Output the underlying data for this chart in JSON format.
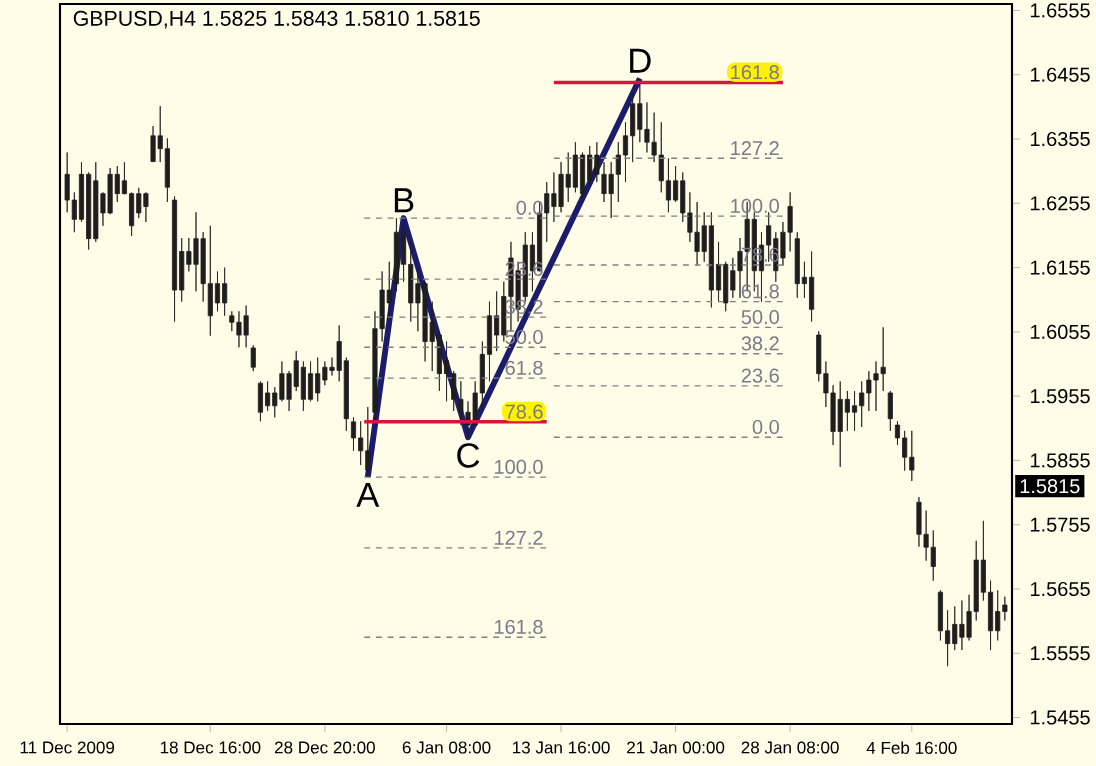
{
  "chart_data": {
    "type": "candlestick",
    "title": "GBPUSD,H4  1.5825 1.5843 1.5810 1.5815",
    "color": "#1e1e1e",
    "categories": [
      "11 Dec 2009",
      null,
      null,
      null,
      null,
      null,
      null,
      null,
      null,
      null,
      null,
      null,
      null,
      null,
      null,
      null,
      null,
      null,
      null,
      null,
      "18 Dec 16:00",
      null,
      null,
      null,
      null,
      null,
      null,
      null,
      null,
      null,
      null,
      null,
      null,
      null,
      null,
      null,
      "28 Dec 20:00",
      null,
      null,
      null,
      null,
      null,
      null,
      null,
      null,
      null,
      null,
      null,
      null,
      null,
      null,
      null,
      null,
      "6 Jan 08:00",
      null,
      null,
      null,
      null,
      null,
      null,
      null,
      null,
      null,
      null,
      null,
      null,
      null,
      null,
      null,
      "13 Jan 16:00",
      null,
      null,
      null,
      null,
      null,
      null,
      null,
      null,
      null,
      null,
      null,
      null,
      null,
      null,
      null,
      "21 Jan 00:00",
      null,
      null,
      null,
      null,
      null,
      null,
      null,
      null,
      null,
      null,
      null,
      null,
      null,
      null,
      null,
      "28 Jan 08:00",
      null,
      null,
      null,
      null,
      null,
      null,
      null,
      null,
      null,
      null,
      null,
      null,
      null,
      null,
      null,
      null,
      "4 Feb 16:00",
      null,
      null,
      null,
      null,
      null,
      null,
      null,
      null,
      null,
      null,
      null,
      null,
      null
    ],
    "ohlc": [
      [
        1.63,
        1.6334,
        1.6241,
        1.626
      ],
      [
        1.626,
        1.6272,
        1.621,
        1.623
      ],
      [
        1.623,
        1.6319,
        1.6226,
        1.63
      ],
      [
        1.63,
        1.6303,
        1.6183,
        1.62
      ],
      [
        1.62,
        1.6319,
        1.6195,
        1.629
      ],
      [
        1.627,
        1.6272,
        1.622,
        1.624
      ],
      [
        1.624,
        1.631,
        1.6238,
        1.63
      ],
      [
        1.63,
        1.6313,
        1.6257,
        1.627
      ],
      [
        1.627,
        1.6319,
        1.6269,
        1.629
      ],
      [
        1.627,
        1.6272,
        1.6204,
        1.622
      ],
      [
        1.624,
        1.6279,
        1.6232,
        1.627
      ],
      [
        1.627,
        1.6272,
        1.6226,
        1.625
      ],
      [
        1.632,
        1.6375,
        1.6319,
        1.636
      ],
      [
        1.636,
        1.6406,
        1.6319,
        1.634
      ],
      [
        1.634,
        1.6356,
        1.6257,
        1.628
      ],
      [
        1.626,
        1.6266,
        1.6071,
        1.612
      ],
      [
        1.612,
        1.6201,
        1.6102,
        1.618
      ],
      [
        1.618,
        1.6201,
        1.6149,
        1.616
      ],
      [
        1.616,
        1.6241,
        1.6118,
        1.62
      ],
      [
        1.62,
        1.621,
        1.6102,
        1.613
      ],
      [
        1.613,
        1.622,
        1.6049,
        1.608
      ],
      [
        1.61,
        1.6149,
        1.6087,
        1.613
      ],
      [
        1.613,
        1.6155,
        1.608,
        1.61
      ],
      [
        1.608,
        1.6087,
        1.6056,
        1.607
      ],
      [
        1.607,
        1.6087,
        1.6031,
        1.605
      ],
      [
        1.605,
        1.6096,
        1.6031,
        1.608
      ],
      [
        1.603,
        1.6034,
        1.5994,
        1.6
      ],
      [
        1.5975,
        1.5978,
        1.5916,
        1.593
      ],
      [
        1.594,
        1.5978,
        1.5932,
        1.596
      ],
      [
        1.596,
        1.5969,
        1.5922,
        1.594
      ],
      [
        1.595,
        1.6009,
        1.5947,
        1.599
      ],
      [
        1.599,
        1.5994,
        1.5932,
        1.595
      ],
      [
        1.597,
        1.6025,
        1.5963,
        1.601
      ],
      [
        1.6,
        1.6009,
        1.5932,
        1.595
      ],
      [
        1.595,
        1.6009,
        1.5947,
        1.599
      ],
      [
        1.599,
        1.6015,
        1.5947,
        1.596
      ],
      [
        1.598,
        1.6009,
        1.5972,
        1.6
      ],
      [
        1.6,
        1.6015,
        1.5987,
        1.5995
      ],
      [
        1.5995,
        1.6065,
        1.5978,
        1.604
      ],
      [
        1.601,
        1.6015,
        1.5901,
        1.592
      ],
      [
        1.5915,
        1.5922,
        1.587,
        1.589
      ],
      [
        1.589,
        1.5916,
        1.5848,
        1.587
      ],
      [
        1.587,
        1.5938,
        1.5829,
        1.584
      ],
      [
        1.593,
        1.6087,
        1.5916,
        1.606
      ],
      [
        1.606,
        1.6149,
        1.604,
        1.612
      ],
      [
        1.612,
        1.6164,
        1.6071,
        1.61
      ],
      [
        1.613,
        1.6232,
        1.6118,
        1.621
      ],
      [
        1.621,
        1.6232,
        1.6133,
        1.616
      ],
      [
        1.616,
        1.6195,
        1.6071,
        1.61
      ],
      [
        1.61,
        1.6149,
        1.6056,
        1.613
      ],
      [
        1.613,
        1.6133,
        1.6009,
        1.604
      ],
      [
        1.604,
        1.6102,
        1.5994,
        1.607
      ],
      [
        1.605,
        1.6056,
        1.5963,
        1.599
      ],
      [
        1.599,
        1.604,
        1.5947,
        1.601
      ],
      [
        1.599,
        1.5994,
        1.5932,
        1.595
      ],
      [
        1.595,
        1.5978,
        1.591,
        1.593
      ],
      [
        1.593,
        1.5947,
        1.5891,
        1.591
      ],
      [
        1.591,
        1.5978,
        1.591,
        1.596
      ],
      [
        1.596,
        1.604,
        1.5932,
        1.602
      ],
      [
        1.602,
        1.6102,
        1.5978,
        1.608
      ],
      [
        1.608,
        1.6118,
        1.6025,
        1.605
      ],
      [
        1.605,
        1.6133,
        1.604,
        1.611
      ],
      [
        1.611,
        1.6195,
        1.6056,
        1.617
      ],
      [
        1.615,
        1.6164,
        1.6071,
        1.609
      ],
      [
        1.611,
        1.621,
        1.6102,
        1.619
      ],
      [
        1.619,
        1.621,
        1.6118,
        1.615
      ],
      [
        1.615,
        1.6257,
        1.6149,
        1.624
      ],
      [
        1.624,
        1.6288,
        1.6195,
        1.627
      ],
      [
        1.627,
        1.6303,
        1.6226,
        1.625
      ],
      [
        1.625,
        1.6319,
        1.6241,
        1.63
      ],
      [
        1.63,
        1.6334,
        1.6257,
        1.628
      ],
      [
        1.628,
        1.635,
        1.6272,
        1.633
      ],
      [
        1.633,
        1.6334,
        1.6257,
        1.627
      ],
      [
        1.629,
        1.6344,
        1.6282,
        1.633
      ],
      [
        1.633,
        1.635,
        1.6288,
        1.63
      ],
      [
        1.63,
        1.6319,
        1.6257,
        1.627
      ],
      [
        1.627,
        1.6319,
        1.6232,
        1.63
      ],
      [
        1.63,
        1.635,
        1.6257,
        1.633
      ],
      [
        1.633,
        1.6381,
        1.6288,
        1.636
      ],
      [
        1.636,
        1.6427,
        1.6319,
        1.641
      ],
      [
        1.641,
        1.6449,
        1.635,
        1.637
      ],
      [
        1.637,
        1.6412,
        1.6334,
        1.635
      ],
      [
        1.635,
        1.6396,
        1.6319,
        1.633
      ],
      [
        1.633,
        1.6381,
        1.6272,
        1.629
      ],
      [
        1.629,
        1.6325,
        1.6241,
        1.626
      ],
      [
        1.626,
        1.6313,
        1.6257,
        1.629
      ],
      [
        1.629,
        1.6303,
        1.6226,
        1.624
      ],
      [
        1.624,
        1.6272,
        1.6195,
        1.621
      ],
      [
        1.621,
        1.6257,
        1.6158,
        1.618
      ],
      [
        1.618,
        1.6241,
        1.6164,
        1.622
      ],
      [
        1.622,
        1.6241,
        1.6093,
        1.612
      ],
      [
        1.612,
        1.6195,
        1.6102,
        1.616
      ],
      [
        1.616,
        1.6164,
        1.6087,
        1.61
      ],
      [
        1.612,
        1.617,
        1.6108,
        1.615
      ],
      [
        1.615,
        1.6201,
        1.6108,
        1.618
      ],
      [
        1.618,
        1.6257,
        1.6118,
        1.623
      ],
      [
        1.623,
        1.6241,
        1.6118,
        1.615
      ],
      [
        1.615,
        1.621,
        1.6102,
        1.619
      ],
      [
        1.619,
        1.6241,
        1.6164,
        1.622
      ],
      [
        1.62,
        1.621,
        1.6133,
        1.615
      ],
      [
        1.617,
        1.6226,
        1.6158,
        1.621
      ],
      [
        1.621,
        1.6272,
        1.618,
        1.625
      ],
      [
        1.62,
        1.621,
        1.6108,
        1.613
      ],
      [
        1.613,
        1.6164,
        1.6108,
        1.614
      ],
      [
        1.614,
        1.618,
        1.6071,
        1.609
      ],
      [
        1.605,
        1.6056,
        1.5978,
        1.599
      ],
      [
        1.599,
        1.6009,
        1.5938,
        1.596
      ],
      [
        1.596,
        1.5972,
        1.5879,
        1.59
      ],
      [
        1.59,
        1.5978,
        1.5845,
        1.595
      ],
      [
        1.595,
        1.5963,
        1.5901,
        1.593
      ],
      [
        1.593,
        1.5963,
        1.5901,
        1.594
      ],
      [
        1.594,
        1.5978,
        1.5907,
        1.596
      ],
      [
        1.596,
        1.5994,
        1.5932,
        1.598
      ],
      [
        1.598,
        1.6009,
        1.5932,
        1.599
      ],
      [
        1.599,
        1.6062,
        1.5963,
        1.6
      ],
      [
        1.596,
        1.5963,
        1.5901,
        1.592
      ],
      [
        1.591,
        1.5916,
        1.5879,
        1.589
      ],
      [
        1.589,
        1.5901,
        1.5839,
        1.586
      ],
      [
        1.586,
        1.5901,
        1.5823,
        1.584
      ],
      [
        1.579,
        1.5798,
        1.5721,
        1.574
      ],
      [
        1.574,
        1.5777,
        1.5699,
        1.572
      ],
      [
        1.572,
        1.5746,
        1.5668,
        1.569
      ],
      [
        1.565,
        1.5653,
        1.5575,
        1.559
      ],
      [
        1.559,
        1.5622,
        1.5535,
        1.557
      ],
      [
        1.557,
        1.5628,
        1.556,
        1.56
      ],
      [
        1.56,
        1.5637,
        1.556,
        1.558
      ],
      [
        1.558,
        1.5646,
        1.5575,
        1.562
      ],
      [
        1.562,
        1.573,
        1.5606,
        1.57
      ],
      [
        1.57,
        1.5761,
        1.5637,
        1.565
      ],
      [
        1.565,
        1.5668,
        1.556,
        1.559
      ],
      [
        1.559,
        1.5653,
        1.5575,
        1.562
      ],
      [
        1.562,
        1.5643,
        1.5606,
        1.563
      ]
    ],
    "series": [
      {
        "type": "line",
        "color": "#1c1c6c",
        "values": [
          null,
          null,
          null,
          null,
          null,
          null,
          null,
          null,
          null,
          null,
          null,
          null,
          null,
          null,
          null,
          null,
          null,
          null,
          null,
          null,
          null,
          null,
          null,
          null,
          null,
          null,
          null,
          null,
          null,
          null,
          null,
          null,
          null,
          null,
          null,
          null,
          null,
          null,
          null,
          null,
          null,
          null,
          1.5829,
          null,
          null,
          null,
          null,
          1.6232,
          null,
          null,
          null,
          null,
          null,
          null,
          null,
          null,
          1.5891,
          null,
          null,
          null,
          null,
          null,
          null,
          null,
          null,
          null,
          null,
          null,
          null,
          null,
          null,
          null,
          null,
          null,
          null,
          null,
          null,
          null,
          null,
          null,
          1.6449,
          null,
          null,
          null,
          null,
          null,
          null,
          null,
          null,
          null,
          null,
          null,
          null,
          null,
          null,
          null,
          null,
          null,
          null,
          null,
          null,
          null,
          null,
          null,
          null,
          null,
          null,
          null,
          null,
          null,
          null,
          null,
          null,
          null,
          null,
          null,
          null,
          null,
          null,
          null,
          null,
          null,
          null,
          null,
          null,
          null,
          null,
          null,
          null,
          null,
          null,
          null
        ]
      }
    ],
    "ylim": [
      1.5445,
      1.6565
    ],
    "yticks": [
      1.5455,
      1.5555,
      1.5655,
      1.5755,
      1.5855,
      1.5955,
      1.6055,
      1.6155,
      1.6255,
      1.6355,
      1.6455,
      1.6555
    ],
    "ref_lines": [
      {
        "axis": "y",
        "value": 1.6232,
        "color": "#808080",
        "line_style": "dashed"
      },
      {
        "axis": "y",
        "value": 1.6137,
        "color": "#808080",
        "line_style": "dashed"
      },
      {
        "axis": "y",
        "value": 1.6078,
        "color": "#808080",
        "line_style": "dashed"
      },
      {
        "axis": "y",
        "value": 1.6031,
        "color": "#808080",
        "line_style": "dashed"
      },
      {
        "axis": "y",
        "value": 1.5983,
        "color": "#808080",
        "line_style": "dashed"
      },
      {
        "axis": "y",
        "value": 1.5915,
        "color": "#dc143c"
      },
      {
        "axis": "y",
        "value": 1.5829,
        "color": "#808080",
        "line_style": "dashed"
      },
      {
        "axis": "y",
        "value": 1.5719,
        "color": "#808080",
        "line_style": "dashed"
      },
      {
        "axis": "y",
        "value": 1.558,
        "color": "#808080",
        "line_style": "dashed"
      },
      {
        "axis": "y",
        "value": 1.6443,
        "color": "#dc143c"
      },
      {
        "axis": "y",
        "value": 1.6325,
        "color": "#808080",
        "line_style": "dashed"
      },
      {
        "axis": "y",
        "value": 1.6235,
        "color": "#808080",
        "line_style": "dashed"
      },
      {
        "axis": "y",
        "value": 1.6159,
        "color": "#808080",
        "line_style": "dashed"
      },
      {
        "axis": "y",
        "value": 1.6102,
        "color": "#808080",
        "line_style": "dashed"
      },
      {
        "axis": "y",
        "value": 1.6062,
        "color": "#808080",
        "line_style": "dashed"
      },
      {
        "axis": "y",
        "value": 1.6021,
        "color": "#808080",
        "line_style": "dashed"
      },
      {
        "axis": "y",
        "value": 1.5971,
        "color": "#808080",
        "line_style": "dashed"
      },
      {
        "axis": "y",
        "value": 1.5891,
        "color": "#808080",
        "line_style": "dashed"
      }
    ],
    "annotations": [
      {
        "text": "A",
        "y": 1.5829
      },
      {
        "text": "B",
        "y": 1.6232
      },
      {
        "text": "C",
        "y": 1.5891
      },
      {
        "text": "D",
        "y": 1.6449
      },
      {
        "text": "1.5815",
        "y": 1.5815
      },
      {
        "text": "0.0",
        "y": 1.6232
      },
      {
        "text": "23.6",
        "y": 1.6137
      },
      {
        "text": "38.2",
        "y": 1.6078
      },
      {
        "text": "50.0",
        "y": 1.6031
      },
      {
        "text": "61.8",
        "y": 1.5983
      },
      {
        "text": "78.6",
        "y": 1.5915
      },
      {
        "text": "100.0",
        "y": 1.5829
      },
      {
        "text": "127.2",
        "y": 1.5719
      },
      {
        "text": "161.8",
        "y": 1.558
      },
      {
        "text": "161.8",
        "y": 1.6443
      },
      {
        "text": "127.2",
        "y": 1.6325
      },
      {
        "text": "100.0",
        "y": 1.6235
      },
      {
        "text": "78.6",
        "y": 1.6159
      },
      {
        "text": "61.8",
        "y": 1.6102
      },
      {
        "text": "50.0",
        "y": 1.6062
      },
      {
        "text": "38.2",
        "y": 1.6021
      },
      {
        "text": "23.6",
        "y": 1.5971
      },
      {
        "text": "0.0",
        "y": 1.5891
      }
    ]
  }
}
